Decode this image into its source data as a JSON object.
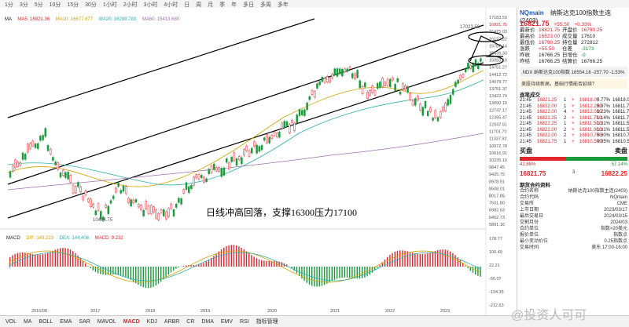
{
  "topbar": {
    "items": [
      "1分",
      "3分",
      "5分",
      "10分",
      "15分",
      "30分",
      "1小时",
      "2小时",
      "3小时",
      "4小时",
      "日",
      "周",
      "月",
      "季",
      "年",
      "多日",
      "多周",
      "多年"
    ]
  },
  "indicators": {
    "ma_label": "MA",
    "ma5": "MA5: 16821.36",
    "ma10": "MA10: 16677.677",
    "ma20": "MA20: 16288.783",
    "ma60": "MA60: 15413.680",
    "colors": {
      "ma5": "#e0262b",
      "ma10": "#d1a500",
      "ma20": "#2bb0a6",
      "ma60": "#9c6fb0"
    }
  },
  "price_axis": [
    "17183.50",
    "16821.75",
    "16475.03",
    "16127.22",
    "15787.14",
    "15439.33",
    "15093.10",
    "14751.27",
    "14412.72",
    "14079.77",
    "13751.37",
    "13422.74",
    "13090.10",
    "12747.17",
    "12395.47",
    "12047.51",
    "11701.70",
    "11337.92",
    "10972.78",
    "10616.91",
    "10235.10",
    "9847.45",
    "9425.75",
    "8978.91",
    "8508.01",
    "8017.85",
    "7501.80",
    "6982.63",
    "6452.73",
    "5891.16"
  ],
  "date_axis": [
    "2016/08",
    "2017",
    "2018",
    "2019",
    "2020",
    "2021",
    "2022",
    "2023",
    "10",
    "12",
    "4",
    "6",
    "8",
    "10",
    "12"
  ],
  "annotation_text": "日线冲高回落，支撑16300压力17100",
  "high_label": "17023.50",
  "low_label": "10484.75",
  "macd": {
    "label": "MACD",
    "dif": "DIF: 149.223",
    "dea": "DEA: 144.406",
    "macd": "MACD: 9.232",
    "axis": [
      "178.77",
      "100.49",
      "22.21",
      "-56.07",
      "-134.35",
      "-212.63"
    ]
  },
  "quote": {
    "symbol": "NQmain",
    "name": "纳斯达克100指数主连(2403)",
    "price": "16821.75",
    "change": "+55.50",
    "pct": "+0.33%",
    "fields": [
      [
        "最新价",
        "16821.75",
        "开盘价",
        "16790.25"
      ],
      [
        "最高价",
        "16823.00",
        "成交量",
        "17610"
      ],
      [
        "最低价",
        "16790.25",
        "持仓量",
        "272812"
      ],
      [
        "涨跌",
        "+55.50",
        "仓差",
        "-3173"
      ],
      [
        "昨收",
        "16766.25",
        "日增仓",
        "-9"
      ],
      [
        "昨结",
        "16766.25",
        "结算价",
        "16766.25"
      ]
    ],
    "link_text": ".NDX 纳斯达克100指数  16554.16  -257.70  -1.53%",
    "news": "美股持续新高，基础行情能否延续？"
  },
  "trades": {
    "title": "逐笔成交",
    "rows": [
      [
        "21:45",
        "16821.25",
        "1",
        "+",
        "16818.00",
        "0.77%",
        "16818.00"
      ],
      [
        "21:45",
        "16822.00",
        "1",
        "+",
        "16812.250",
        "0.87%",
        "16811.75"
      ],
      [
        "21:45",
        "16822.00",
        "4",
        "+",
        "16812.000",
        "1.23%",
        "16811.75"
      ],
      [
        "21:45",
        "16822.25",
        "2",
        "+",
        "16811.750",
        "1.14%",
        "16811.75"
      ],
      [
        "21:45",
        "16822.25",
        "1",
        "+",
        "16811.500",
        "1.31%",
        "16811.50"
      ],
      [
        "21:45",
        "16822.00",
        "2",
        "+",
        "16811.000",
        "1.31%",
        "16811.50"
      ],
      [
        "21:45",
        "16822.00",
        "2",
        "+",
        "16810.750",
        "0.80%",
        "16810.75"
      ],
      [
        "21:45",
        "16821.75",
        "1",
        "+",
        "16810.500",
        "0.95%",
        "16810.50"
      ]
    ]
  },
  "orderbook": {
    "bid_label": "买盘",
    "ask_label": "卖盘",
    "bid_price": "16821.75",
    "ask_price": "16822.25",
    "bid_qty": "3",
    "bid_pct": "42.86%",
    "ask_pct": "57.14%"
  },
  "contract": {
    "title": "期货合约资料",
    "rows": [
      [
        "合约名称",
        "纳斯达克100指数主连(2403)"
      ],
      [
        "合约代码",
        "NQmain"
      ],
      [
        "交易所",
        "CME"
      ],
      [
        "上市日期",
        "2023/03/17"
      ],
      [
        "最后交易日",
        "2024/03/15"
      ],
      [
        "交割月份",
        "2024/03"
      ],
      [
        "合约单位",
        "指数×20美元"
      ],
      [
        "报价单位",
        "指数点"
      ],
      [
        "最小变动价位",
        "0.25指数点"
      ],
      [
        "交易时间",
        "美东 17:00-16:00"
      ]
    ]
  },
  "bottom_tabs": [
    "VOL",
    "MA",
    "BOLL",
    "EMA",
    "SAR",
    "MAVOL",
    "MACD",
    "KDJ",
    "ARBR",
    "CR",
    "DMA",
    "EMV",
    "RSI",
    "指标管理"
  ],
  "watermark": "@投资人可可"
}
